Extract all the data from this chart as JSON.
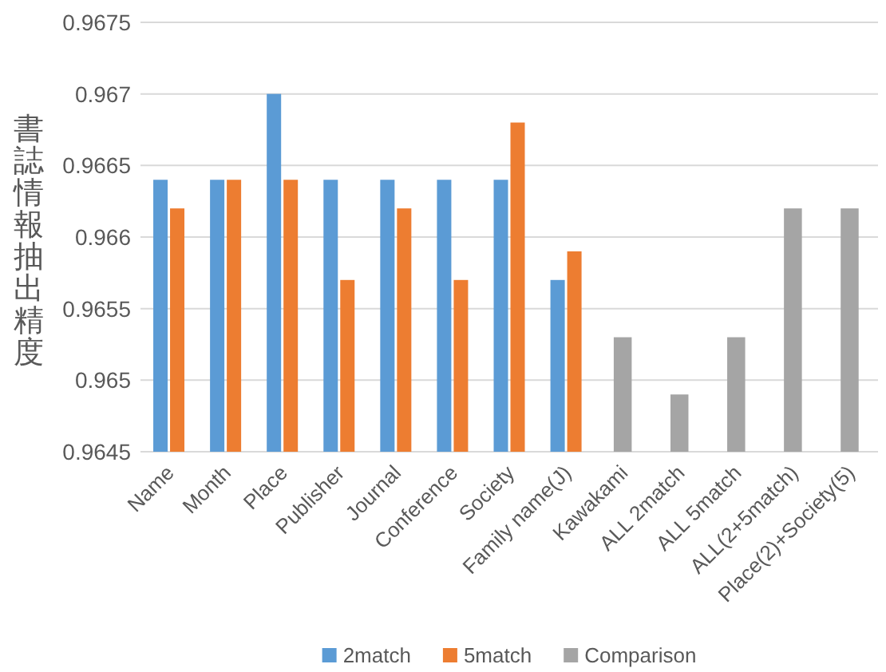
{
  "chart_data": {
    "type": "bar",
    "ylabel": "書誌情報抽出精度",
    "categories": [
      "Name",
      "Month",
      "Place",
      "Publisher",
      "Journal",
      "Conference",
      "Society",
      "Family name(J)",
      "Kawakami",
      "ALL 2match",
      "ALL 5match",
      "ALL(2+5match)",
      "Place(2)+Society(5)"
    ],
    "series": [
      {
        "name": "2match",
        "color": "#5b9bd5",
        "values": [
          0.9664,
          0.9664,
          0.967,
          0.9664,
          0.9664,
          0.9664,
          0.9664,
          0.9657,
          null,
          null,
          null,
          null,
          null
        ]
      },
      {
        "name": "5match",
        "color": "#ed7d31",
        "values": [
          0.9662,
          0.9664,
          0.9664,
          0.9657,
          0.9662,
          0.9657,
          0.9668,
          0.9659,
          null,
          null,
          null,
          null,
          null
        ]
      },
      {
        "name": "Comparison",
        "color": "#a5a5a5",
        "values": [
          null,
          null,
          null,
          null,
          null,
          null,
          null,
          null,
          0.9653,
          0.9649,
          0.9653,
          0.9662,
          0.9662
        ]
      }
    ],
    "ylim": [
      0.9645,
      0.9675
    ],
    "yticks": [
      0.9645,
      0.965,
      0.9655,
      0.966,
      0.9665,
      0.967,
      0.9675
    ],
    "grid": "y",
    "legend": "bottom"
  }
}
